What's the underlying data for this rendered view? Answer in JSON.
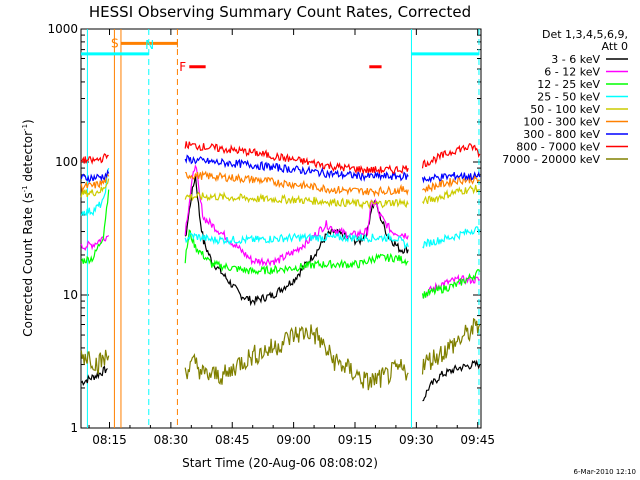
{
  "chart_data": {
    "type": "line",
    "title": "HESSI Observing Summary Count Rates, Corrected",
    "xlabel": "Start Time (20-Aug-06 08:08:02)",
    "ylabel_main": "Corrected Count Rate (s",
    "ylabel_sup1": "-1",
    "ylabel_mid": " detector",
    "ylabel_sup2": "-1",
    "ylabel_end": ")",
    "y_scale": "log",
    "ylim": [
      1,
      1000
    ],
    "xlim_minutes": [
      8.0333,
      105.8
    ],
    "x_tick_labels": [
      "08:15",
      "08:30",
      "08:45",
      "09:00",
      "09:15",
      "09:30",
      "09:45"
    ],
    "x_tick_minutes": [
      15,
      30,
      45,
      60,
      75,
      90,
      105
    ],
    "y_tick_labels": [
      "1",
      "10",
      "100",
      "1000"
    ],
    "y_tick_values": [
      1,
      10,
      100,
      1000
    ],
    "legend_header": [
      "Det 1,3,4,5,6,9,",
      "Att 0"
    ],
    "legend_position": "right",
    "series": [
      {
        "name": "3 - 6 keV",
        "color": "#000000",
        "segments": [
          [
            [
              8.1,
              2.2
            ],
            [
              12,
              2.5
            ],
            [
              14.5,
              2.8
            ]
          ],
          [
            [
              33.5,
              26
            ],
            [
              35,
              55
            ],
            [
              36,
              80
            ],
            [
              37,
              40
            ],
            [
              38,
              25
            ],
            [
              40,
              18
            ],
            [
              43,
              14
            ],
            [
              47,
              10
            ],
            [
              50,
              9
            ],
            [
              55,
              10
            ],
            [
              60,
              13
            ],
            [
              63,
              17
            ],
            [
              66,
              22
            ],
            [
              68,
              28
            ],
            [
              70,
              30
            ],
            [
              72,
              28
            ],
            [
              76,
              25
            ],
            [
              78,
              30
            ],
            [
              79,
              45
            ],
            [
              80,
              50
            ],
            [
              81,
              40
            ],
            [
              83,
              28
            ],
            [
              86,
              22
            ],
            [
              88,
              22
            ]
          ],
          [
            [
              91.5,
              1.6
            ],
            [
              93,
              2.0
            ],
            [
              96,
              2.5
            ],
            [
              100,
              2.8
            ],
            [
              104,
              3.0
            ],
            [
              105.5,
              3.0
            ]
          ]
        ]
      },
      {
        "name": "6 - 12 keV",
        "color": "#ff00ff",
        "segments": [
          [
            [
              8.1,
              23
            ],
            [
              11,
              24
            ],
            [
              13.5,
              27
            ],
            [
              14.8,
              28
            ]
          ],
          [
            [
              33.5,
              30
            ],
            [
              35,
              65
            ],
            [
              36,
              100
            ],
            [
              37,
              55
            ],
            [
              38,
              38
            ],
            [
              42,
              30
            ],
            [
              50,
              18
            ],
            [
              56,
              18
            ],
            [
              60,
              21
            ],
            [
              64,
              26
            ],
            [
              67,
              32
            ],
            [
              68,
              34
            ],
            [
              70,
              31
            ],
            [
              74,
              28
            ],
            [
              78,
              30
            ],
            [
              79,
              48
            ],
            [
              80,
              50
            ],
            [
              81,
              40
            ],
            [
              84,
              30
            ],
            [
              88,
              28
            ]
          ],
          [
            [
              91.5,
              10
            ],
            [
              96,
              12
            ],
            [
              100,
              13
            ],
            [
              104,
              13
            ],
            [
              105.5,
              13
            ]
          ]
        ]
      },
      {
        "name": "12 - 25 keV",
        "color": "#00ff00",
        "segments": [
          [
            [
              8.1,
              18
            ],
            [
              11,
              19
            ],
            [
              13.5,
              28
            ],
            [
              14.8,
              62
            ]
          ],
          [
            [
              33.5,
              18
            ],
            [
              34.5,
              30
            ],
            [
              36,
              23
            ],
            [
              40,
              17
            ],
            [
              50,
              15
            ],
            [
              60,
              16
            ],
            [
              66,
              17
            ],
            [
              70,
              17
            ],
            [
              76,
              17
            ],
            [
              80,
              19
            ],
            [
              85,
              19
            ],
            [
              88,
              18
            ]
          ],
          [
            [
              91.5,
              10
            ],
            [
              96,
              11
            ],
            [
              100,
              12
            ],
            [
              104,
              14
            ],
            [
              105.5,
              15
            ]
          ]
        ]
      },
      {
        "name": "25 - 50 keV",
        "color": "#00ffff",
        "segments": [
          [
            [
              8.1,
              42
            ],
            [
              11,
              43
            ],
            [
              13.5,
              50
            ],
            [
              14.8,
              90
            ]
          ],
          [
            [
              33.5,
              26
            ],
            [
              35,
              28
            ],
            [
              40,
              26
            ],
            [
              50,
              26
            ],
            [
              60,
              27
            ],
            [
              70,
              27
            ],
            [
              80,
              27
            ],
            [
              85,
              27
            ],
            [
              88,
              23
            ]
          ],
          [
            [
              91.5,
              24
            ],
            [
              96,
              26
            ],
            [
              100,
              28
            ],
            [
              104,
              31
            ],
            [
              105.5,
              31
            ]
          ]
        ]
      },
      {
        "name": "50 - 100 keV",
        "color": "#cccc00",
        "segments": [
          [
            [
              8.1,
              58
            ],
            [
              11,
              59
            ],
            [
              13.5,
              62
            ],
            [
              14.8,
              75
            ]
          ],
          [
            [
              33.5,
              55
            ],
            [
              40,
              55
            ],
            [
              50,
              53
            ],
            [
              60,
              52
            ],
            [
              70,
              50
            ],
            [
              78,
              48
            ],
            [
              82,
              49
            ],
            [
              86,
              50
            ],
            [
              88,
              48
            ]
          ],
          [
            [
              91.5,
              50
            ],
            [
              96,
              55
            ],
            [
              100,
              60
            ],
            [
              104,
              63
            ],
            [
              105.5,
              62
            ]
          ]
        ]
      },
      {
        "name": "100 - 300 keV",
        "color": "#ff8000",
        "segments": [
          [
            [
              8.1,
              65
            ],
            [
              11,
              66
            ],
            [
              13.5,
              70
            ],
            [
              14.8,
              78
            ]
          ],
          [
            [
              33.5,
              80
            ],
            [
              40,
              78
            ],
            [
              50,
              74
            ],
            [
              60,
              68
            ],
            [
              70,
              62
            ],
            [
              78,
              60
            ],
            [
              84,
              61
            ],
            [
              88,
              62
            ]
          ],
          [
            [
              91.5,
              62
            ],
            [
              96,
              68
            ],
            [
              100,
              73
            ],
            [
              104,
              74
            ],
            [
              105.5,
              72
            ]
          ]
        ]
      },
      {
        "name": "300 - 800 keV",
        "color": "#0000ff",
        "segments": [
          [
            [
              8.1,
              76
            ],
            [
              11,
              76
            ],
            [
              13.5,
              78
            ],
            [
              14.8,
              82
            ]
          ],
          [
            [
              33.5,
              105
            ],
            [
              40,
              100
            ],
            [
              50,
              95
            ],
            [
              60,
              88
            ],
            [
              70,
              81
            ],
            [
              78,
              78
            ],
            [
              84,
              78
            ],
            [
              88,
              78
            ]
          ],
          [
            [
              91.5,
              74
            ],
            [
              96,
              77
            ],
            [
              100,
              79
            ],
            [
              104,
              78
            ],
            [
              105.5,
              77
            ]
          ]
        ]
      },
      {
        "name": "800 - 7000 keV",
        "color": "#ff0000",
        "segments": [
          [
            [
              8.1,
              104
            ],
            [
              11,
              102
            ],
            [
              13.5,
              107
            ],
            [
              14.8,
              112
            ]
          ],
          [
            [
              33.5,
              135
            ],
            [
              40,
              128
            ],
            [
              50,
              118
            ],
            [
              60,
              104
            ],
            [
              70,
              92
            ],
            [
              78,
              87
            ],
            [
              84,
              87
            ],
            [
              88,
              90
            ]
          ],
          [
            [
              91.5,
              96
            ],
            [
              96,
              110
            ],
            [
              100,
              125
            ],
            [
              104,
              130
            ],
            [
              105.5,
              115
            ]
          ]
        ]
      },
      {
        "name": "7000 - 20000 keV",
        "color": "#808000",
        "segments": [
          [
            [
              8.1,
              3.5
            ],
            [
              10,
              3.5
            ],
            [
              12,
              3.0
            ],
            [
              14.8,
              3.5
            ]
          ],
          [
            [
              33.5,
              2.7
            ],
            [
              36,
              3.1
            ],
            [
              38,
              2.5
            ],
            [
              44,
              2.5
            ],
            [
              46,
              3.0
            ],
            [
              50,
              3.5
            ],
            [
              55,
              4.0
            ],
            [
              60,
              5.0
            ],
            [
              64,
              5.3
            ],
            [
              66,
              4.8
            ],
            [
              68,
              3.8
            ],
            [
              70,
              3.2
            ],
            [
              74,
              2.7
            ],
            [
              78,
              2.2
            ],
            [
              82,
              2.4
            ],
            [
              86,
              2.8
            ],
            [
              88,
              2.6
            ]
          ],
          [
            [
              91.5,
              3.0
            ],
            [
              95,
              3.5
            ],
            [
              98,
              4.0
            ],
            [
              102,
              5.0
            ],
            [
              105.5,
              6.0
            ]
          ]
        ]
      }
    ],
    "vertical_lines": [
      {
        "minute": 9.6,
        "style": "solid",
        "color": "#00ffff"
      },
      {
        "minute": 16.2,
        "style": "solid",
        "color": "#ff8000"
      },
      {
        "minute": 17.8,
        "style": "solid",
        "color": "#ff8000"
      },
      {
        "minute": 24.6,
        "style": "dashed",
        "color": "#00ffff"
      },
      {
        "minute": 31.6,
        "style": "dashed",
        "color": "#ff8000"
      },
      {
        "minute": 88.8,
        "style": "solid",
        "color": "#00ffff"
      },
      {
        "minute": 105.3,
        "style": "dashed",
        "color": "#00ffff"
      }
    ],
    "flag_bars": [
      {
        "label": "",
        "color": "#00ffff",
        "from": 8.03,
        "to": 24.6,
        "y": 650
      },
      {
        "label": "S",
        "color": "#ff8000",
        "from": 17.8,
        "to": 31.6,
        "y": 780
      },
      {
        "label": "N",
        "color": "#00ffff",
        "from": 24.8,
        "to": 26.0,
        "y": 0
      },
      {
        "label": "F",
        "color": "#ff0000",
        "from": 34.5,
        "to": 38.5,
        "y": 520
      },
      {
        "label": "",
        "color": "#ff0000",
        "from": 78.5,
        "to": 81.5,
        "y": 520
      },
      {
        "label": "",
        "color": "#00ffff",
        "from": 88.8,
        "to": 105.3,
        "y": 650
      }
    ],
    "flag_letters": {
      "S": "S",
      "N": "N",
      "F": "F"
    },
    "timestamp": "6-Mar-2010 12:10"
  }
}
